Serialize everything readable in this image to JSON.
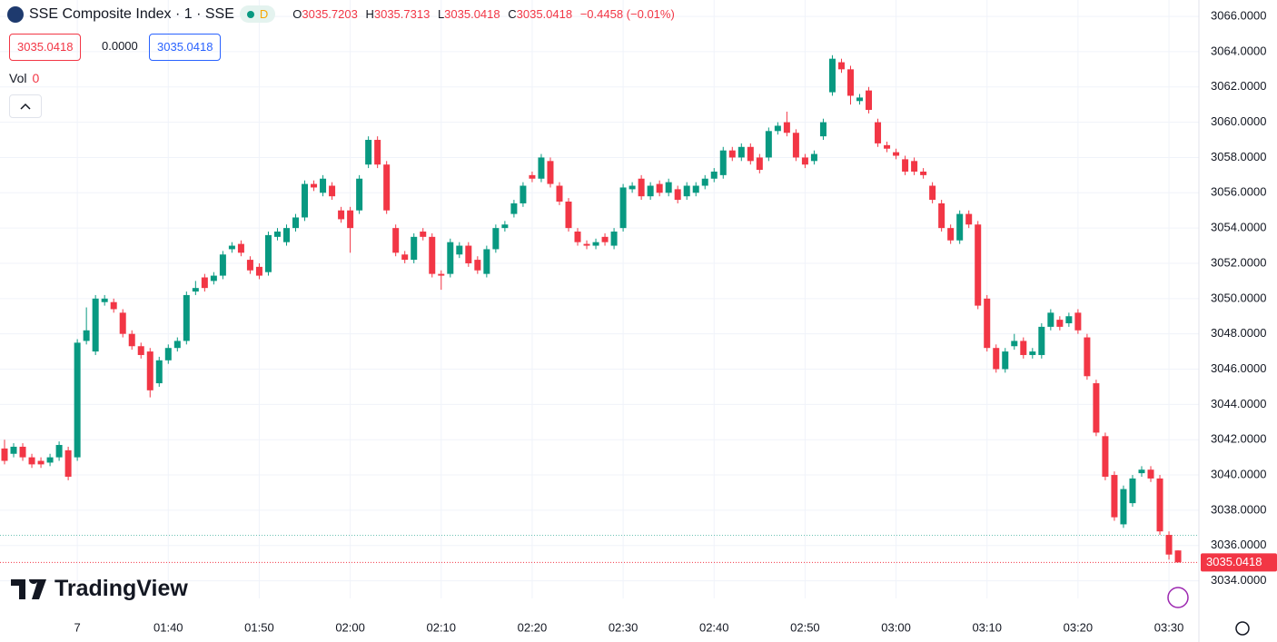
{
  "header": {
    "symbol": "SSE Composite Index · 1 · SSE",
    "badge": "D",
    "ohlc": [
      {
        "key": "O",
        "value": "3035.7203"
      },
      {
        "key": "H",
        "value": "3035.7313"
      },
      {
        "key": "L",
        "value": "3035.0418"
      },
      {
        "key": "C",
        "value": "3035.0418"
      }
    ],
    "change": "−0.4458 (−0.01%)",
    "sell": "3035.0418",
    "spread": "0.0000",
    "buy": "3035.0418",
    "vol_label": "Vol",
    "vol_value": "0",
    "logo": "TradingView"
  },
  "chart_data": {
    "type": "candlestick",
    "up_color": "#089981",
    "down_color": "#f23645",
    "grid": true,
    "categories": [
      null,
      null,
      null,
      null,
      null,
      null,
      null,
      null,
      "7",
      null,
      null,
      null,
      null,
      null,
      null,
      null,
      null,
      null,
      "01:40",
      null,
      null,
      null,
      null,
      null,
      null,
      null,
      null,
      null,
      "01:50",
      null,
      null,
      null,
      null,
      null,
      null,
      null,
      null,
      null,
      "02:00",
      null,
      null,
      null,
      null,
      null,
      null,
      null,
      null,
      null,
      "02:10",
      null,
      null,
      null,
      null,
      null,
      null,
      null,
      null,
      null,
      "02:20",
      null,
      null,
      null,
      null,
      null,
      null,
      null,
      null,
      null,
      "02:30",
      null,
      null,
      null,
      null,
      null,
      null,
      null,
      null,
      null,
      "02:40",
      null,
      null,
      null,
      null,
      null,
      null,
      null,
      null,
      null,
      "02:50",
      null,
      null,
      null,
      null,
      null,
      null,
      null,
      null,
      null,
      "03:00",
      null,
      null,
      null,
      null,
      null,
      null,
      null,
      null,
      null,
      "03:10",
      null,
      null,
      null,
      null,
      null,
      null,
      null,
      null,
      null,
      "03:20",
      null,
      null,
      null,
      null,
      null,
      null,
      null,
      null,
      null,
      "03:30",
      null
    ],
    "open": [
      3041.5,
      3041.2,
      3041.6,
      3041.0,
      3040.8,
      3040.7,
      3041.0,
      3041.4,
      3041.0,
      3047.6,
      3047.0,
      3049.8,
      3049.8,
      3049.2,
      3048.0,
      3047.3,
      3047.0,
      3045.2,
      3046.5,
      3047.2,
      3047.6,
      3050.4,
      3051.2,
      3051.0,
      3051.3,
      3052.8,
      3053.1,
      3052.2,
      3051.8,
      3051.5,
      3053.5,
      3053.2,
      3054.0,
      3054.6,
      3056.5,
      3056.0,
      3056.4,
      3055.0,
      3055.0,
      3055.0,
      3057.6,
      3059.0,
      3057.6,
      3054.0,
      3052.5,
      3052.2,
      3053.8,
      3053.5,
      3051.4,
      3051.4,
      3052.5,
      3053.0,
      3052.2,
      3051.4,
      3052.8,
      3054.0,
      3054.8,
      3055.4,
      3057.0,
      3056.8,
      3057.8,
      3056.4,
      3055.5,
      3053.8,
      3053.1,
      3053.0,
      3053.5,
      3053.0,
      3054.0,
      3056.2,
      3056.8,
      3055.8,
      3056.5,
      3056.0,
      3056.2,
      3055.8,
      3056.0,
      3056.4,
      3056.8,
      3057.0,
      3058.4,
      3058.0,
      3058.6,
      3058.0,
      3058.0,
      3059.5,
      3060.0,
      3059.4,
      3058.0,
      3057.8,
      3059.2,
      3061.7,
      3063.4,
      3063.0,
      3061.2,
      3061.8,
      3060.0,
      3058.7,
      3058.3,
      3057.9,
      3057.8,
      3057.2,
      3056.4,
      3055.4,
      3054.0,
      3053.3,
      3054.8,
      3054.2,
      3050.0,
      3047.2,
      3046.0,
      3047.3,
      3047.6,
      3046.8,
      3046.8,
      3048.4,
      3048.8,
      3048.6,
      3049.2,
      3047.8,
      3045.2,
      3042.2,
      3040.0,
      3037.2,
      3038.4,
      3040.1,
      3040.3,
      3039.8,
      3036.6,
      3035.7203
    ],
    "high": [
      3042.0,
      3041.8,
      3041.8,
      3041.2,
      3041.0,
      3041.2,
      3041.9,
      3041.6,
      3047.7,
      3049.5,
      3050.2,
      3050.2,
      3050.0,
      3049.4,
      3048.2,
      3047.5,
      3047.2,
      3046.7,
      3047.4,
      3047.8,
      3050.4,
      3051.0,
      3051.4,
      3051.5,
      3052.7,
      3053.2,
      3053.3,
      3052.4,
      3052.0,
      3053.8,
      3054.0,
      3054.2,
      3054.8,
      3056.7,
      3056.7,
      3057.0,
      3056.6,
      3055.2,
      3055.2,
      3057.0,
      3059.2,
      3059.2,
      3057.8,
      3054.2,
      3052.7,
      3053.7,
      3054.0,
      3053.7,
      3051.6,
      3053.4,
      3053.2,
      3053.2,
      3052.4,
      3053.0,
      3054.2,
      3054.4,
      3055.6,
      3056.6,
      3057.2,
      3058.2,
      3058.0,
      3056.6,
      3055.7,
      3054.0,
      3053.3,
      3053.4,
      3053.7,
      3054.0,
      3056.5,
      3056.6,
      3057.0,
      3056.6,
      3056.7,
      3056.8,
      3056.4,
      3056.6,
      3056.6,
      3057.0,
      3057.4,
      3058.6,
      3058.6,
      3058.8,
      3058.8,
      3058.2,
      3059.7,
      3060.0,
      3060.6,
      3059.6,
      3058.2,
      3058.4,
      3060.2,
      3063.8,
      3063.6,
      3063.2,
      3061.6,
      3062.0,
      3060.2,
      3058.9,
      3058.5,
      3058.1,
      3058.0,
      3057.4,
      3056.6,
      3055.6,
      3054.2,
      3055.0,
      3055.0,
      3054.4,
      3050.2,
      3047.4,
      3047.2,
      3048.0,
      3047.8,
      3047.2,
      3048.6,
      3049.4,
      3049.0,
      3049.2,
      3049.4,
      3048.0,
      3045.4,
      3042.4,
      3040.2,
      3039.4,
      3040.0,
      3040.5,
      3040.5,
      3040.0,
      3036.8,
      3035.7313
    ],
    "low": [
      3040.6,
      3041.0,
      3040.8,
      3040.4,
      3040.4,
      3040.5,
      3040.8,
      3039.7,
      3040.8,
      3047.4,
      3046.8,
      3049.6,
      3049.2,
      3047.8,
      3047.1,
      3046.6,
      3044.4,
      3045.0,
      3046.3,
      3047.0,
      3047.4,
      3050.2,
      3050.4,
      3050.8,
      3051.1,
      3052.6,
      3052.4,
      3051.4,
      3051.1,
      3051.3,
      3053.3,
      3053.0,
      3053.8,
      3054.4,
      3056.1,
      3055.8,
      3055.6,
      3054.3,
      3052.6,
      3054.8,
      3057.4,
      3057.4,
      3054.8,
      3052.4,
      3052.0,
      3052.0,
      3053.3,
      3051.2,
      3050.5,
      3051.2,
      3052.3,
      3051.8,
      3051.4,
      3051.2,
      3052.6,
      3053.8,
      3054.6,
      3055.2,
      3056.6,
      3056.6,
      3056.3,
      3055.3,
      3053.8,
      3053.0,
      3052.8,
      3052.8,
      3053.0,
      3052.8,
      3053.8,
      3056.0,
      3055.6,
      3055.6,
      3055.8,
      3055.8,
      3055.4,
      3055.6,
      3055.8,
      3056.2,
      3056.6,
      3056.8,
      3057.8,
      3057.8,
      3057.6,
      3057.1,
      3057.8,
      3059.3,
      3059.2,
      3057.8,
      3057.4,
      3057.6,
      3059.0,
      3061.5,
      3062.8,
      3061.0,
      3061.0,
      3060.5,
      3058.6,
      3058.3,
      3057.9,
      3057.0,
      3057.0,
      3056.8,
      3055.4,
      3053.8,
      3053.1,
      3053.1,
      3054.0,
      3049.4,
      3047.0,
      3045.8,
      3045.8,
      3047.1,
      3046.6,
      3046.6,
      3046.6,
      3048.2,
      3048.2,
      3048.4,
      3048.0,
      3045.4,
      3042.2,
      3039.7,
      3037.4,
      3037.0,
      3038.2,
      3039.9,
      3039.6,
      3036.6,
      3035.2,
      3035.0418
    ],
    "close": [
      3040.8,
      3041.6,
      3041.0,
      3040.6,
      3040.6,
      3041.0,
      3041.7,
      3039.9,
      3047.5,
      3048.2,
      3050.0,
      3050.0,
      3049.4,
      3048.0,
      3047.3,
      3046.8,
      3044.8,
      3046.5,
      3047.2,
      3047.6,
      3050.2,
      3050.6,
      3050.6,
      3051.3,
      3052.5,
      3053.0,
      3052.6,
      3051.6,
      3051.3,
      3053.6,
      3053.8,
      3054.0,
      3054.6,
      3056.5,
      3056.3,
      3056.8,
      3055.8,
      3054.5,
      3054.0,
      3056.8,
      3059.0,
      3057.6,
      3055.0,
      3052.6,
      3052.2,
      3053.5,
      3053.5,
      3051.4,
      3051.3,
      3053.2,
      3053.0,
      3052.0,
      3051.6,
      3052.8,
      3054.0,
      3054.2,
      3055.4,
      3056.4,
      3056.8,
      3058.0,
      3056.5,
      3055.5,
      3054.0,
      3053.2,
      3053.0,
      3053.2,
      3053.2,
      3053.8,
      3056.3,
      3056.4,
      3055.8,
      3056.4,
      3056.0,
      3056.6,
      3055.6,
      3056.4,
      3056.4,
      3056.8,
      3057.2,
      3058.4,
      3058.0,
      3058.6,
      3057.8,
      3057.3,
      3059.5,
      3059.8,
      3059.4,
      3058.0,
      3057.6,
      3058.2,
      3060.0,
      3063.6,
      3063.0,
      3061.5,
      3061.4,
      3060.7,
      3058.8,
      3058.5,
      3058.1,
      3057.2,
      3057.2,
      3057.0,
      3055.6,
      3054.0,
      3053.3,
      3054.8,
      3054.2,
      3049.6,
      3047.2,
      3046.0,
      3047.0,
      3047.6,
      3046.8,
      3047.0,
      3048.4,
      3049.2,
      3048.4,
      3049.0,
      3048.2,
      3045.6,
      3042.4,
      3039.9,
      3037.6,
      3039.2,
      3039.8,
      3040.3,
      3039.8,
      3036.8,
      3035.4876,
      3035.0418
    ],
    "reference_line": 3036.58,
    "ylim": [
      3033.0,
      3066.93
    ],
    "yticks": [
      {
        "value": 3034,
        "label": "3034.0000"
      },
      {
        "value": 3036,
        "label": "3036.0000"
      },
      {
        "value": 3038,
        "label": "3038.0000"
      },
      {
        "value": 3040,
        "label": "3040.0000"
      },
      {
        "value": 3042,
        "label": "3042.0000"
      },
      {
        "value": 3044,
        "label": "3044.0000"
      },
      {
        "value": 3046,
        "label": "3046.0000"
      },
      {
        "value": 3048,
        "label": "3048.0000"
      },
      {
        "value": 3050,
        "label": "3050.0000"
      },
      {
        "value": 3052,
        "label": "3052.0000"
      },
      {
        "value": 3054,
        "label": "3054.0000"
      },
      {
        "value": 3056,
        "label": "3056.0000"
      },
      {
        "value": 3058,
        "label": "3058.0000"
      },
      {
        "value": 3060,
        "label": "3060.0000"
      },
      {
        "value": 3062,
        "label": "3062.0000"
      },
      {
        "value": 3064,
        "label": "3064.0000"
      },
      {
        "value": 3066,
        "label": "3066.0000"
      }
    ]
  }
}
